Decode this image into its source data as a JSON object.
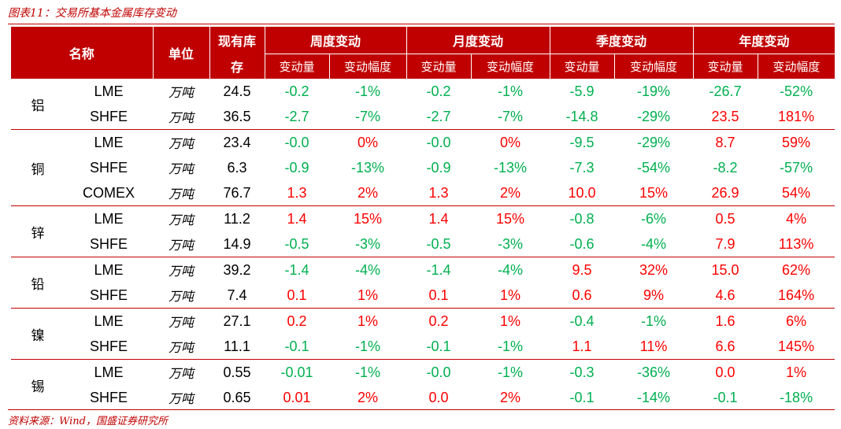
{
  "caption": "图表11：交易所基本金属库存变动",
  "source": "资料来源：Wind，国盛证券研究所",
  "header": {
    "name": "名称",
    "unit": "单位",
    "stock_line1": "现有库",
    "stock_line2": "存",
    "groups": [
      "周度变动",
      "月度变动",
      "季度变动",
      "年度变动"
    ],
    "sub_amount": "变动量",
    "sub_pct": "变动幅度"
  },
  "colors": {
    "accent": "#c00000",
    "negative": "#00b050",
    "positive": "#ff0000"
  },
  "unit_label": "万吨",
  "rows": [
    {
      "metal": "铝",
      "exchange": "LME",
      "unit": "万吨",
      "stock": "24.5",
      "vals": [
        "-0.2",
        "-1%",
        "-0.2",
        "-1%",
        "-5.9",
        "-19%",
        "-26.7",
        "-52%"
      ]
    },
    {
      "metal": "",
      "exchange": "SHFE",
      "unit": "万吨",
      "stock": "36.5",
      "vals": [
        "-2.7",
        "-7%",
        "-2.7",
        "-7%",
        "-14.8",
        "-29%",
        "23.5",
        "181%"
      ]
    },
    {
      "metal": "铜",
      "exchange": "LME",
      "unit": "万吨",
      "stock": "23.4",
      "vals": [
        "-0.0",
        "0%",
        "-0.0",
        "0%",
        "-9.5",
        "-29%",
        "8.7",
        "59%"
      ]
    },
    {
      "metal": "",
      "exchange": "SHFE",
      "unit": "万吨",
      "stock": "6.3",
      "vals": [
        "-0.9",
        "-13%",
        "-0.9",
        "-13%",
        "-7.3",
        "-54%",
        "-8.2",
        "-57%"
      ]
    },
    {
      "metal": "",
      "exchange": "COMEX",
      "unit": "万吨",
      "stock": "76.7",
      "vals": [
        "1.3",
        "2%",
        "1.3",
        "2%",
        "10.0",
        "15%",
        "26.9",
        "54%"
      ]
    },
    {
      "metal": "锌",
      "exchange": "LME",
      "unit": "万吨",
      "stock": "11.2",
      "vals": [
        "1.4",
        "15%",
        "1.4",
        "15%",
        "-0.8",
        "-6%",
        "0.5",
        "4%"
      ]
    },
    {
      "metal": "",
      "exchange": "SHFE",
      "unit": "万吨",
      "stock": "14.9",
      "vals": [
        "-0.5",
        "-3%",
        "-0.5",
        "-3%",
        "-0.6",
        "-4%",
        "7.9",
        "113%"
      ]
    },
    {
      "metal": "铅",
      "exchange": "LME",
      "unit": "万吨",
      "stock": "39.2",
      "vals": [
        "-1.4",
        "-4%",
        "-1.4",
        "-4%",
        "9.5",
        "32%",
        "15.0",
        "62%"
      ]
    },
    {
      "metal": "",
      "exchange": "SHFE",
      "unit": "万吨",
      "stock": "7.4",
      "vals": [
        "0.1",
        "1%",
        "0.1",
        "1%",
        "0.6",
        "9%",
        "4.6",
        "164%"
      ]
    },
    {
      "metal": "镍",
      "exchange": "LME",
      "unit": "万吨",
      "stock": "27.1",
      "vals": [
        "0.2",
        "1%",
        "0.2",
        "1%",
        "-0.4",
        "-1%",
        "1.6",
        "6%"
      ]
    },
    {
      "metal": "",
      "exchange": "SHFE",
      "unit": "万吨",
      "stock": "11.1",
      "vals": [
        "-0.1",
        "-1%",
        "-0.1",
        "-1%",
        "1.1",
        "11%",
        "6.6",
        "145%"
      ]
    },
    {
      "metal": "锡",
      "exchange": "LME",
      "unit": "万吨",
      "stock": "0.55",
      "vals": [
        "-0.01",
        "-1%",
        "-0.0",
        "-1%",
        "-0.3",
        "-36%",
        "0.0",
        "1%"
      ]
    },
    {
      "metal": "",
      "exchange": "SHFE",
      "unit": "万吨",
      "stock": "0.65",
      "vals": [
        "0.01",
        "2%",
        "0.0",
        "2%",
        "-0.1",
        "-14%",
        "-0.1",
        "-18%"
      ]
    }
  ],
  "groups_rowspan": [
    2,
    3,
    2,
    2,
    2,
    2
  ]
}
